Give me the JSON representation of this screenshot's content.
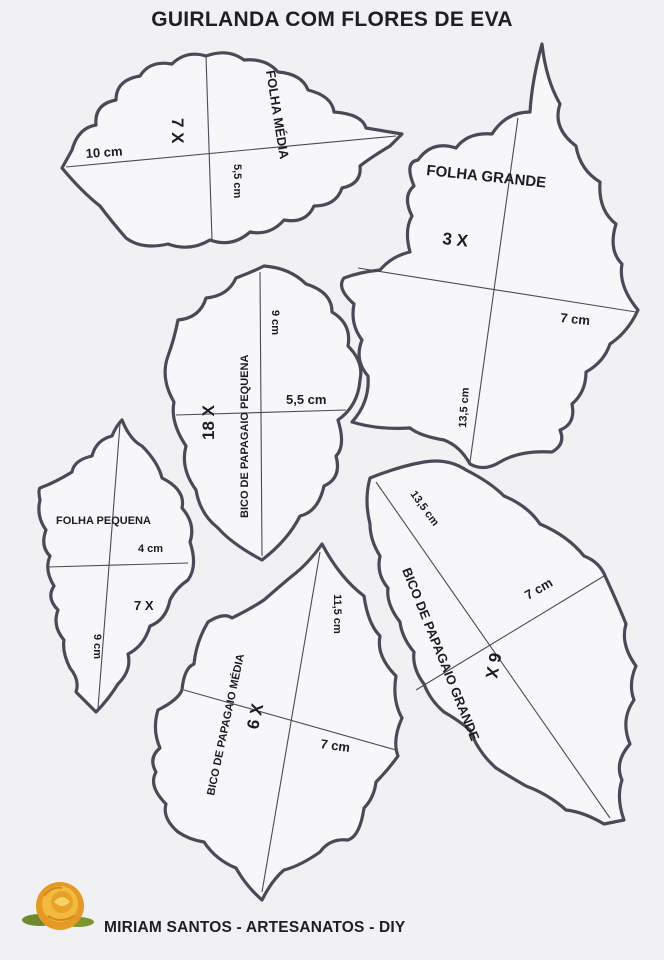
{
  "title": "GUIRLANDA COM FLORES DE EVA",
  "footer": "MIRIAM SANTOS - ARTESANATOS - DIY",
  "logo": "rose-flower-icon",
  "colors": {
    "outline": "#4d4857",
    "paper": "#f1f1f3",
    "text": "#1c1c22",
    "rose": "#e8a22a"
  },
  "templates": {
    "folha_media": {
      "name": "FOLHA MÉDIA",
      "qty": "7 X",
      "width": "10 cm",
      "height": "5,5 cm"
    },
    "folha_grande": {
      "name": "FOLHA GRANDE",
      "qty": "3 X",
      "width": "7 cm",
      "height": "13,5 cm"
    },
    "bico_pequena": {
      "name": "BICO DE PAPAGAIO PEQUENA",
      "qty": "18 X",
      "height": "9 cm",
      "width": "5,5 cm"
    },
    "folha_pequena": {
      "name": "FOLHA PEQUENA",
      "width": "4 cm",
      "qty": "7 X",
      "height": "9 cm"
    },
    "bico_media": {
      "name": "BICO DE PAPAGAIO MÉDIA",
      "qty": "6 X",
      "height": "11,5 cm",
      "width": "7 cm"
    },
    "bico_grande": {
      "name": "BICO DE PAPAGAIO GRANDE",
      "qty": "6 X",
      "height": "13,5 cm",
      "width": "7 cm"
    }
  }
}
